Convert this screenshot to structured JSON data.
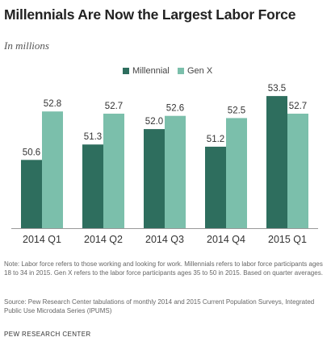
{
  "title": "Millennials Are Now the Largest Labor Force",
  "subtitle": "In millions",
  "legend": [
    {
      "label": "Millennial",
      "color": "#2e6e5e"
    },
    {
      "label": "Gen X",
      "color": "#7bbfab"
    }
  ],
  "note": "Note: Labor force refers to those working and looking for work. Millennials refers to labor force participants ages 18 to 34 in 2015. Gen X refers to the labor force participants ages 35 to 50 in 2015. Based on quarter averages.",
  "source": "Source: Pew Research Center tabulations of monthly 2014 and 2015 Current Population Surveys, Integrated Public Use Microdata Series (IPUMS)",
  "footer": "PEW RESEARCH CENTER",
  "chart_data": {
    "type": "bar",
    "categories": [
      "2014 Q1",
      "2014 Q2",
      "2014 Q3",
      "2014 Q4",
      "2015 Q1"
    ],
    "series": [
      {
        "name": "Millennial",
        "values": [
          50.6,
          51.3,
          52.0,
          51.2,
          53.5
        ],
        "labels": [
          "50.6",
          "51.3",
          "52.0",
          "51.2",
          "53.5"
        ],
        "color": "#2e6e5e"
      },
      {
        "name": "Gen X",
        "values": [
          52.8,
          52.7,
          52.6,
          52.5,
          52.7
        ],
        "labels": [
          "52.8",
          "52.7",
          "52.6",
          "52.5",
          "52.7"
        ],
        "color": "#7bbfab"
      }
    ],
    "ylim": [
      47.5,
      54.2
    ],
    "xlabel": "",
    "ylabel": "",
    "grid": false,
    "legend_position": "top"
  }
}
